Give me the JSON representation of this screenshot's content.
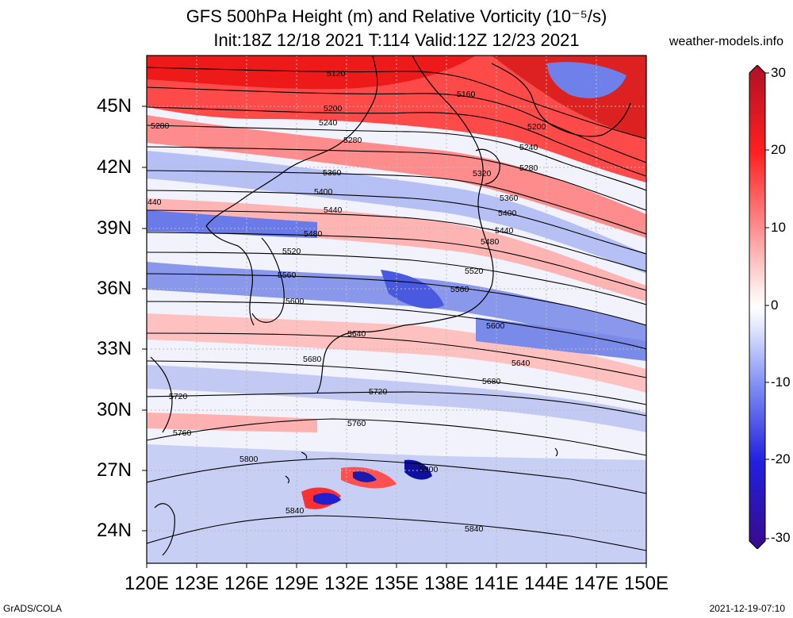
{
  "header": {
    "title_line1": "GFS 500hPa Height (m) and Relative Vorticity (10⁻⁵/s)",
    "title_line2": "Init:18Z 12/18 2021 T:114 Valid:12Z 12/23 2021",
    "brand": "weather-models.info"
  },
  "axes": {
    "x_ticks": [
      "120E",
      "123E",
      "126E",
      "129E",
      "132E",
      "135E",
      "138E",
      "141E",
      "144E",
      "147E",
      "150E"
    ],
    "y_ticks": [
      "45N",
      "42N",
      "39N",
      "36N",
      "33N",
      "30N",
      "27N",
      "24N"
    ]
  },
  "colorbar": {
    "labels": [
      "30",
      "20",
      "10",
      "0",
      "-10",
      "-20",
      "-30"
    ],
    "colors": {
      "max": "#c0182a",
      "pos": "#ff3030",
      "zero": "#ffffff",
      "neg": "#3a4cf0",
      "min": "#3a0a8a"
    }
  },
  "contours": {
    "labels": [
      "5120",
      "5160",
      "5200",
      "5200",
      "5240",
      "5240",
      "5280",
      "5280",
      "5280",
      "5320",
      "5360",
      "5360",
      "5400",
      "5400",
      "440",
      "5440",
      "5440",
      "5480",
      "5480",
      "5520",
      "5520",
      "5560",
      "5560",
      "5600",
      "5600",
      "5640",
      "5640",
      "5680",
      "5680",
      "5720",
      "5720",
      "5760",
      "5760",
      "5800",
      "5800",
      "5840",
      "5840"
    ]
  },
  "footer": {
    "left": "GrADS/COLA",
    "right": "2021-12-19-07:10"
  }
}
